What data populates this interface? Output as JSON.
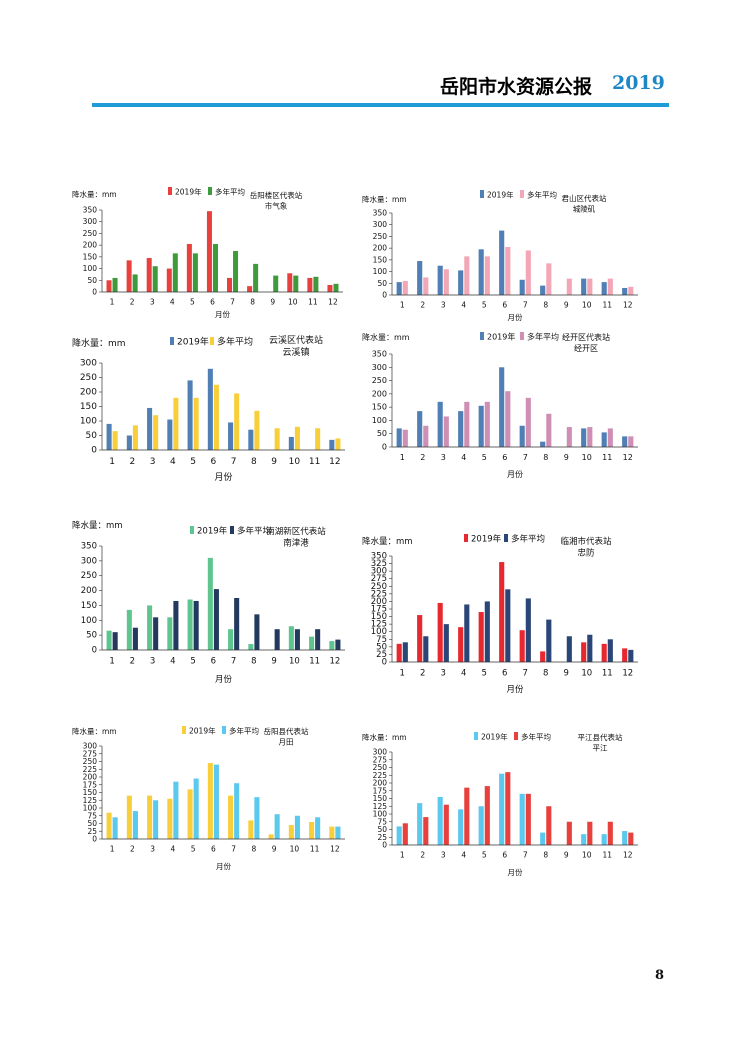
{
  "header": {
    "title": "岳阳市水资源公报",
    "year": "2019"
  },
  "page_number": "8",
  "legend_labels": {
    "year": "2019年",
    "avg": "多年平均"
  },
  "chart_data": [
    {
      "type": "bar",
      "ylabel": "降水量：mm",
      "xlabel": "月份",
      "station": [
        "岳阳楼区代表站",
        "市气象"
      ],
      "ylim": [
        0,
        350
      ],
      "ystep": 50,
      "categories": [
        "1",
        "2",
        "3",
        "4",
        "5",
        "6",
        "7",
        "8",
        "9",
        "10",
        "11",
        "12"
      ],
      "colors": {
        "year": "#e8403d",
        "avg": "#3f9a3b"
      },
      "series": [
        {
          "name": "2019年",
          "values": [
            50,
            135,
            145,
            100,
            205,
            345,
            60,
            25,
            0,
            80,
            60,
            30
          ]
        },
        {
          "name": "多年平均",
          "values": [
            60,
            75,
            110,
            165,
            165,
            205,
            175,
            120,
            70,
            70,
            65,
            35
          ]
        }
      ]
    },
    {
      "type": "bar",
      "ylabel": "降水量：mm",
      "xlabel": "月份",
      "station": [
        "君山区代表站",
        "城陵矶"
      ],
      "ylim": [
        0,
        350
      ],
      "ystep": 50,
      "categories": [
        "1",
        "2",
        "3",
        "4",
        "5",
        "6",
        "7",
        "8",
        "9",
        "10",
        "11",
        "12"
      ],
      "colors": {
        "year": "#4f7fb5",
        "avg": "#f3a7b6"
      },
      "series": [
        {
          "name": "2019年",
          "values": [
            55,
            145,
            125,
            105,
            195,
            275,
            65,
            40,
            0,
            70,
            55,
            30
          ]
        },
        {
          "name": "多年平均",
          "values": [
            60,
            75,
            110,
            165,
            165,
            205,
            190,
            135,
            70,
            70,
            70,
            35
          ]
        }
      ]
    },
    {
      "type": "bar",
      "ylabel": "降水量：mm",
      "xlabel": "月份",
      "station": [
        "云溪区代表站",
        "云溪镇"
      ],
      "ylim": [
        0,
        300
      ],
      "ystep": 50,
      "categories": [
        "1",
        "2",
        "3",
        "4",
        "5",
        "6",
        "7",
        "8",
        "9",
        "10",
        "11",
        "12"
      ],
      "colors": {
        "year": "#4f7fb5",
        "avg": "#f8cf3a"
      },
      "series": [
        {
          "name": "2019年",
          "values": [
            90,
            50,
            145,
            105,
            240,
            280,
            95,
            70,
            0,
            45,
            0,
            35
          ]
        },
        {
          "name": "多年平均",
          "values": [
            65,
            85,
            120,
            180,
            180,
            225,
            195,
            135,
            75,
            80,
            75,
            40
          ]
        }
      ]
    },
    {
      "type": "bar",
      "ylabel": "降水量：mm",
      "xlabel": "月份",
      "station": [
        "经开区代表站",
        "经开区"
      ],
      "ylim": [
        0,
        350
      ],
      "ystep": 50,
      "categories": [
        "1",
        "2",
        "3",
        "4",
        "5",
        "6",
        "7",
        "8",
        "9",
        "10",
        "11",
        "12"
      ],
      "colors": {
        "year": "#4f7fb5",
        "avg": "#cf8fb4"
      },
      "series": [
        {
          "name": "2019年",
          "values": [
            70,
            135,
            170,
            135,
            155,
            300,
            80,
            20,
            0,
            70,
            55,
            40
          ]
        },
        {
          "name": "多年平均",
          "values": [
            65,
            80,
            115,
            170,
            170,
            210,
            185,
            125,
            75,
            75,
            70,
            40
          ]
        }
      ]
    },
    {
      "type": "bar",
      "ylabel": "降水量：mm",
      "xlabel": "月份",
      "station": [
        "南湖新区代表站",
        "南津港"
      ],
      "ylim": [
        0,
        350
      ],
      "ystep": 50,
      "categories": [
        "1",
        "2",
        "3",
        "4",
        "5",
        "6",
        "7",
        "8",
        "9",
        "10",
        "11",
        "12"
      ],
      "colors": {
        "year": "#5fc58f",
        "avg": "#233a5e"
      },
      "series": [
        {
          "name": "2019年",
          "values": [
            65,
            135,
            150,
            110,
            170,
            310,
            70,
            20,
            0,
            80,
            45,
            30
          ]
        },
        {
          "name": "多年平均",
          "values": [
            60,
            75,
            110,
            165,
            165,
            205,
            175,
            120,
            70,
            70,
            70,
            35
          ]
        }
      ]
    },
    {
      "type": "bar",
      "ylabel": "降水量：mm",
      "xlabel": "月份",
      "station": [
        "临湘市代表站",
        "忠防"
      ],
      "ylim": [
        0,
        350
      ],
      "ystep": 25,
      "categories": [
        "1",
        "2",
        "3",
        "4",
        "5",
        "6",
        "7",
        "8",
        "9",
        "10",
        "11",
        "12"
      ],
      "colors": {
        "year": "#e8282f",
        "avg": "#2a4577"
      },
      "series": [
        {
          "name": "2019年",
          "values": [
            60,
            155,
            195,
            115,
            165,
            330,
            105,
            35,
            0,
            65,
            60,
            45
          ]
        },
        {
          "name": "多年平均",
          "values": [
            65,
            85,
            125,
            190,
            200,
            240,
            210,
            140,
            85,
            90,
            75,
            40
          ]
        }
      ]
    },
    {
      "type": "bar",
      "ylabel": "降水量：mm",
      "xlabel": "月份",
      "station": [
        "岳阳县代表站",
        "月田"
      ],
      "ylim": [
        0,
        300
      ],
      "ystep": 25,
      "categories": [
        "1",
        "2",
        "3",
        "4",
        "5",
        "6",
        "7",
        "8",
        "9",
        "10",
        "11",
        "12"
      ],
      "colors": {
        "year": "#f8cf3a",
        "avg": "#5bc8ee"
      },
      "series": [
        {
          "name": "2019年",
          "values": [
            85,
            140,
            140,
            130,
            160,
            245,
            140,
            60,
            15,
            45,
            55,
            40
          ]
        },
        {
          "name": "多年平均",
          "values": [
            70,
            90,
            125,
            185,
            195,
            240,
            180,
            135,
            80,
            75,
            70,
            40
          ]
        }
      ]
    },
    {
      "type": "bar",
      "ylabel": "降水量：mm",
      "xlabel": "月份",
      "station": [
        "平江县代表站",
        "平江"
      ],
      "ylim": [
        0,
        300
      ],
      "ystep": 25,
      "categories": [
        "1",
        "2",
        "3",
        "4",
        "5",
        "6",
        "7",
        "8",
        "9",
        "10",
        "11",
        "12"
      ],
      "colors": {
        "year": "#5bc8ee",
        "avg": "#e8403d"
      },
      "series": [
        {
          "name": "2019年",
          "values": [
            60,
            135,
            155,
            115,
            125,
            230,
            165,
            40,
            0,
            35,
            35,
            45
          ]
        },
        {
          "name": "多年平均",
          "values": [
            70,
            90,
            130,
            185,
            190,
            235,
            165,
            125,
            75,
            75,
            75,
            40
          ]
        }
      ]
    }
  ]
}
